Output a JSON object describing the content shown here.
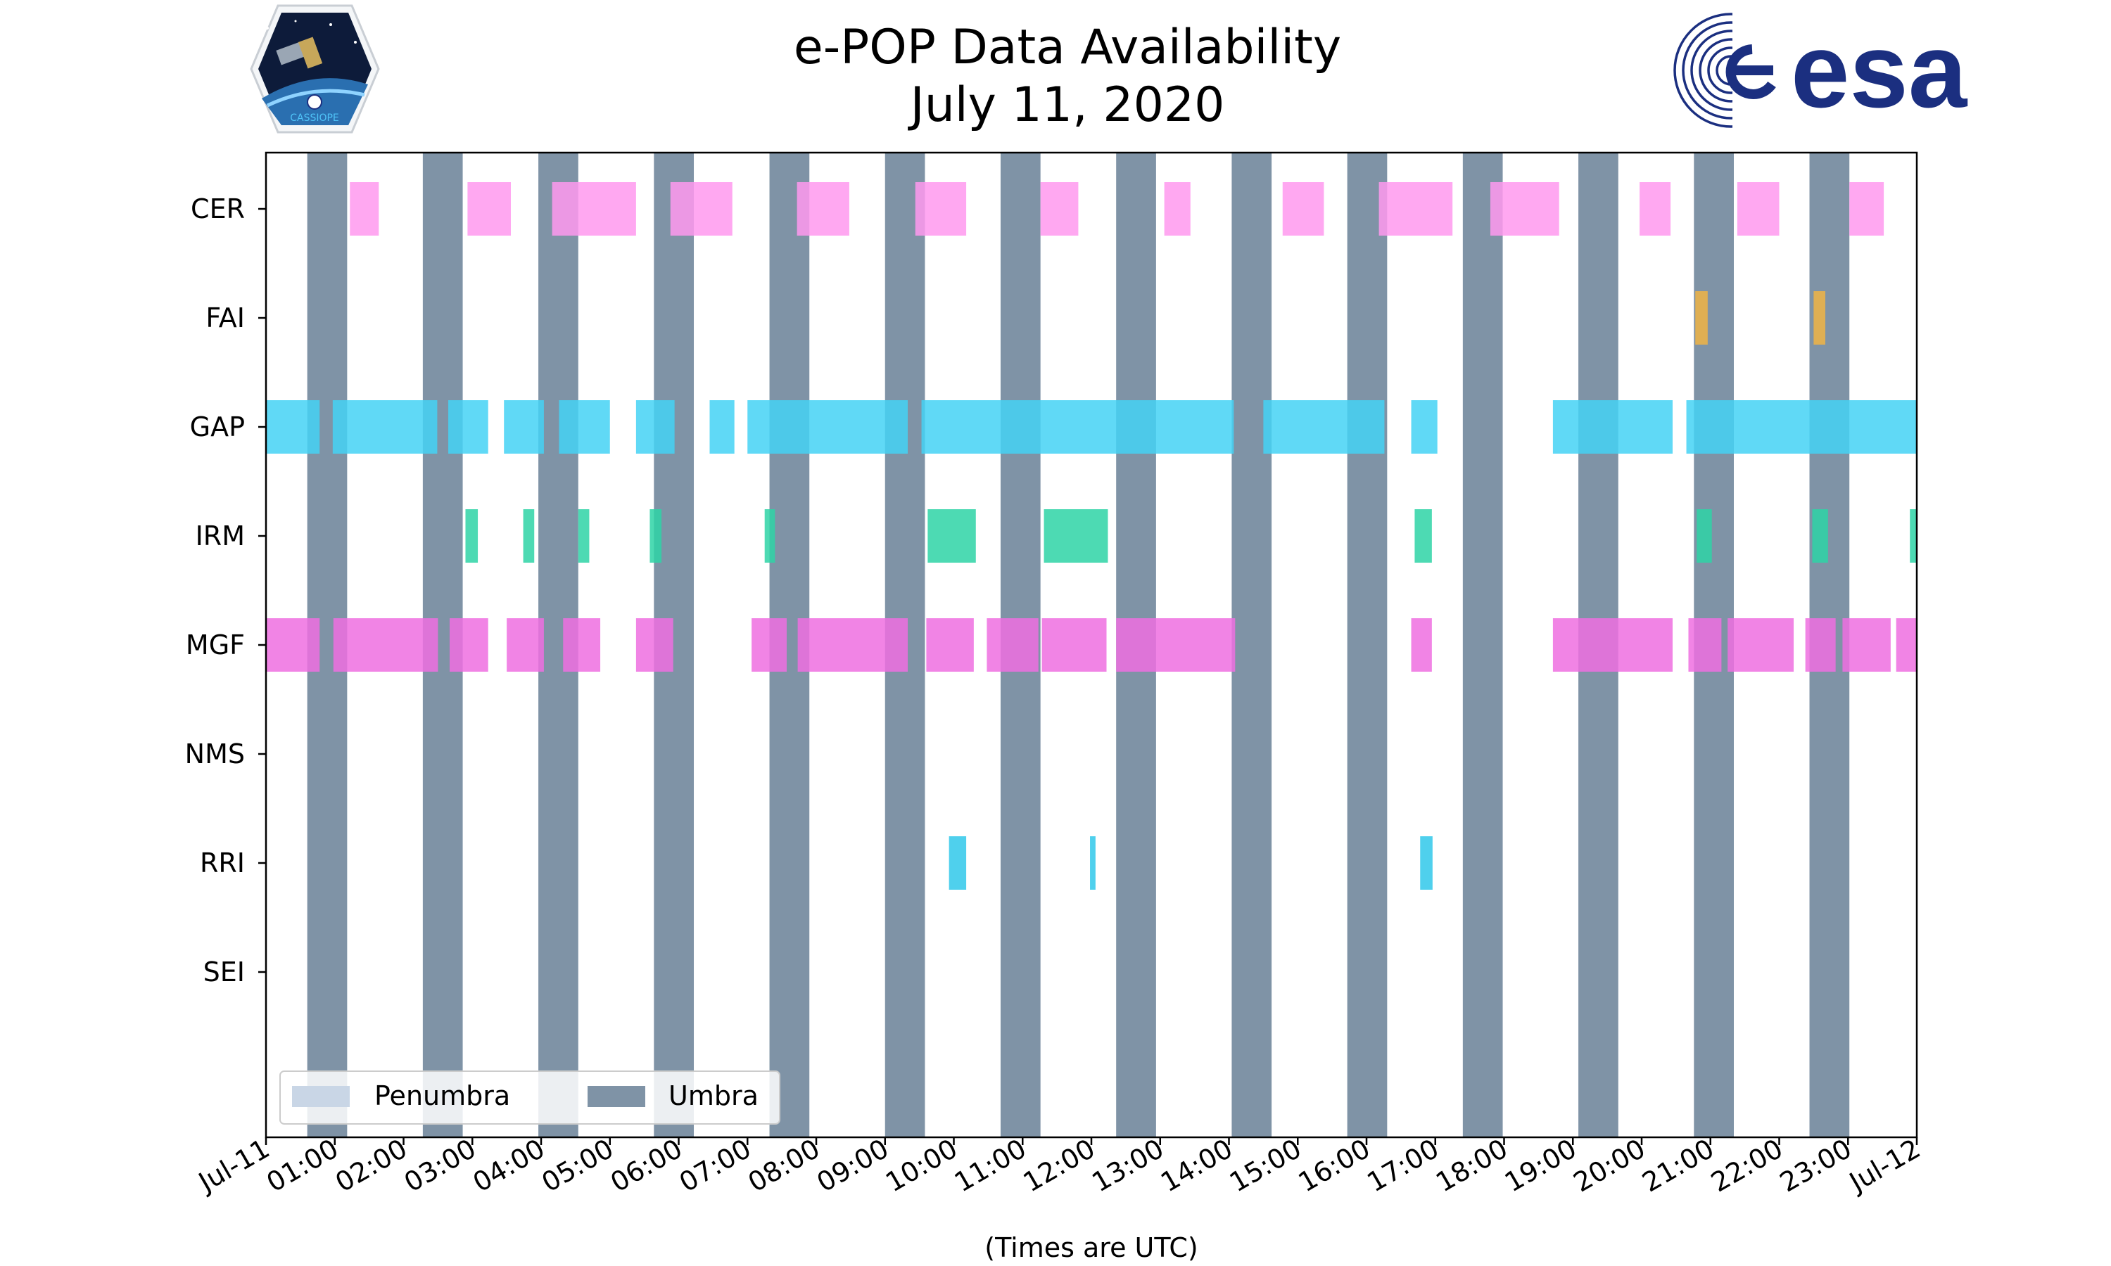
{
  "chart_data": {
    "type": "timeline",
    "title": [
      "e-POP Data Availability",
      "July 11, 2020"
    ],
    "xlabel": "(Times are UTC)",
    "x_unit": "hours UTC",
    "xlim": [
      0,
      24
    ],
    "x_ticks": [
      {
        "hour": 0,
        "label": "Jul-11"
      },
      {
        "hour": 1,
        "label": "01:00"
      },
      {
        "hour": 2,
        "label": "02:00"
      },
      {
        "hour": 3,
        "label": "03:00"
      },
      {
        "hour": 4,
        "label": "04:00"
      },
      {
        "hour": 5,
        "label": "05:00"
      },
      {
        "hour": 6,
        "label": "06:00"
      },
      {
        "hour": 7,
        "label": "07:00"
      },
      {
        "hour": 8,
        "label": "08:00"
      },
      {
        "hour": 9,
        "label": "09:00"
      },
      {
        "hour": 10,
        "label": "10:00"
      },
      {
        "hour": 11,
        "label": "11:00"
      },
      {
        "hour": 12,
        "label": "12:00"
      },
      {
        "hour": 13,
        "label": "13:00"
      },
      {
        "hour": 14,
        "label": "14:00"
      },
      {
        "hour": 15,
        "label": "15:00"
      },
      {
        "hour": 16,
        "label": "16:00"
      },
      {
        "hour": 17,
        "label": "17:00"
      },
      {
        "hour": 18,
        "label": "18:00"
      },
      {
        "hour": 19,
        "label": "19:00"
      },
      {
        "hour": 20,
        "label": "20:00"
      },
      {
        "hour": 21,
        "label": "21:00"
      },
      {
        "hour": 22,
        "label": "22:00"
      },
      {
        "hour": 23,
        "label": "23:00"
      },
      {
        "hour": 24,
        "label": "Jul-12"
      }
    ],
    "instruments": [
      "CER",
      "FAI",
      "GAP",
      "IRM",
      "MGF",
      "NMS",
      "RRI",
      "SEI"
    ],
    "legend": {
      "position": "lower-left",
      "entries": [
        {
          "label": "Penumbra",
          "color": "#c9d6e6"
        },
        {
          "label": "Umbra",
          "color": "#7f93a6"
        }
      ]
    },
    "umbra_intervals": [
      [
        0.6,
        1.18
      ],
      [
        2.28,
        2.86
      ],
      [
        3.96,
        4.54
      ],
      [
        5.64,
        6.22
      ],
      [
        7.32,
        7.9
      ],
      [
        9.0,
        9.58
      ],
      [
        10.68,
        11.26
      ],
      [
        12.36,
        12.94
      ],
      [
        14.04,
        14.62
      ],
      [
        15.72,
        16.3
      ],
      [
        17.4,
        17.98
      ],
      [
        19.08,
        19.66
      ],
      [
        20.76,
        21.34
      ],
      [
        22.44,
        23.02
      ]
    ],
    "series": [
      {
        "name": "CER",
        "color": "#ff99ee",
        "intervals": [
          [
            1.22,
            1.64
          ],
          [
            2.93,
            3.56
          ],
          [
            4.16,
            5.38
          ],
          [
            5.88,
            6.78
          ],
          [
            7.72,
            8.48
          ],
          [
            9.44,
            10.18
          ],
          [
            11.26,
            11.81
          ],
          [
            13.06,
            13.44
          ],
          [
            14.78,
            15.38
          ],
          [
            16.18,
            17.25
          ],
          [
            17.8,
            18.8
          ],
          [
            19.97,
            20.42
          ],
          [
            21.39,
            22.0
          ],
          [
            23.02,
            23.52
          ]
        ]
      },
      {
        "name": "FAI",
        "color": "#f0b444",
        "intervals": [
          [
            20.78,
            20.96
          ],
          [
            22.5,
            22.67
          ]
        ]
      },
      {
        "name": "GAP",
        "color": "#44d2f5",
        "intervals": [
          [
            0.0,
            0.78
          ],
          [
            0.97,
            2.49
          ],
          [
            2.65,
            3.23
          ],
          [
            3.46,
            4.04
          ],
          [
            4.26,
            5.0
          ],
          [
            5.38,
            5.94
          ],
          [
            6.45,
            6.81
          ],
          [
            7.0,
            9.33
          ],
          [
            9.53,
            14.07
          ],
          [
            14.5,
            16.26
          ],
          [
            16.65,
            17.03
          ],
          [
            18.71,
            20.45
          ],
          [
            20.65,
            24.0
          ]
        ]
      },
      {
        "name": "IRM",
        "color": "#2ed3a6",
        "intervals": [
          [
            2.9,
            3.08
          ],
          [
            3.74,
            3.9
          ],
          [
            4.54,
            4.7
          ],
          [
            5.58,
            5.75
          ],
          [
            7.25,
            7.4
          ],
          [
            9.62,
            10.32
          ],
          [
            11.31,
            12.24
          ],
          [
            16.7,
            16.95
          ],
          [
            20.8,
            21.02
          ],
          [
            22.48,
            22.71
          ],
          [
            23.9,
            24.0
          ]
        ]
      },
      {
        "name": "MGF",
        "color": "#ee6ee0",
        "intervals": [
          [
            0.0,
            0.78
          ],
          [
            0.98,
            2.5
          ],
          [
            2.67,
            3.23
          ],
          [
            3.5,
            4.04
          ],
          [
            4.32,
            4.86
          ],
          [
            5.38,
            5.92
          ],
          [
            7.06,
            7.57
          ],
          [
            7.73,
            9.33
          ],
          [
            9.6,
            10.29
          ],
          [
            10.48,
            11.23
          ],
          [
            11.28,
            12.22
          ],
          [
            12.36,
            14.09
          ],
          [
            16.65,
            16.95
          ],
          [
            18.71,
            20.45
          ],
          [
            20.68,
            21.16
          ],
          [
            21.25,
            22.21
          ],
          [
            22.38,
            22.82
          ],
          [
            22.92,
            23.62
          ],
          [
            23.7,
            24.0
          ]
        ]
      },
      {
        "name": "NMS",
        "color": "#cccccc",
        "intervals": []
      },
      {
        "name": "RRI",
        "color": "#30c8ea",
        "intervals": [
          [
            9.93,
            10.18
          ],
          [
            11.98,
            12.06
          ],
          [
            16.78,
            16.96
          ]
        ]
      },
      {
        "name": "SEI",
        "color": "#cccccc",
        "intervals": []
      }
    ]
  },
  "logos": {
    "left": {
      "name": "CASSIOPE",
      "text": "CASSIOPE"
    },
    "right": {
      "name": "esa",
      "text": "esa"
    }
  }
}
